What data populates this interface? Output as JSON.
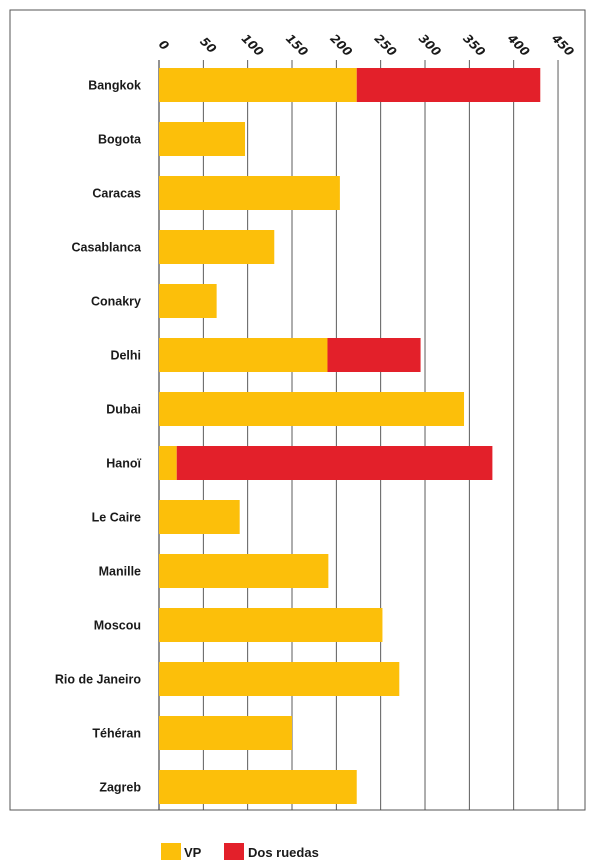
{
  "chart_data": {
    "type": "bar",
    "orientation": "horizontal",
    "stacked": true,
    "categories": [
      "Bangkok",
      "Bogota",
      "Caracas",
      "Casablanca",
      "Conakry",
      "Delhi",
      "Dubai",
      "Hanoï",
      "Le Caire",
      "Manille",
      "Moscou",
      "Rio de Janeiro",
      "Téhéran",
      "Zagreb"
    ],
    "series": [
      {
        "name": "VP",
        "color": "#FCBF0A",
        "values": [
          223,
          97,
          204,
          130,
          65,
          190,
          344,
          20,
          91,
          191,
          252,
          271,
          150,
          223
        ]
      },
      {
        "name": "Dos ruedas",
        "color": "#E3202A",
        "values": [
          207,
          0,
          0,
          0,
          0,
          105,
          0,
          356,
          0,
          0,
          0,
          0,
          0,
          0
        ]
      }
    ],
    "x_ticks": [
      "0",
      "50",
      "100",
      "150",
      "200",
      "250",
      "300",
      "350",
      "400",
      "450"
    ],
    "xlim": [
      0,
      450
    ],
    "x_axis_position": "top",
    "grid": true,
    "legend_position": "bottom"
  }
}
